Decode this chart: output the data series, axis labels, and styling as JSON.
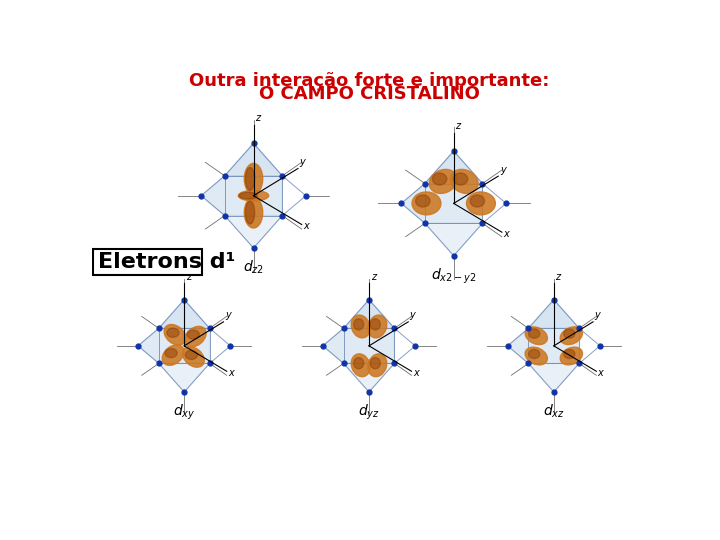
{
  "title_line1": "Outra interação forte e importante:",
  "title_line2": "O CAMPO CRISTALINO",
  "title_color": "#CC0000",
  "title_fontsize": 13,
  "label_text": "Eletrons d¹",
  "label_fontsize": 16,
  "background_color": "white",
  "orbital_label_fontsize": 10,
  "axis_label_fontsize": 7,
  "orb_color_light": "#CC7722",
  "orb_color_dark": "#8B3A00",
  "cage_face_color": "#A8C4E0",
  "cage_edge_color": "#5577AA",
  "dot_color": "#1133AA",
  "stub_color": "#333333"
}
